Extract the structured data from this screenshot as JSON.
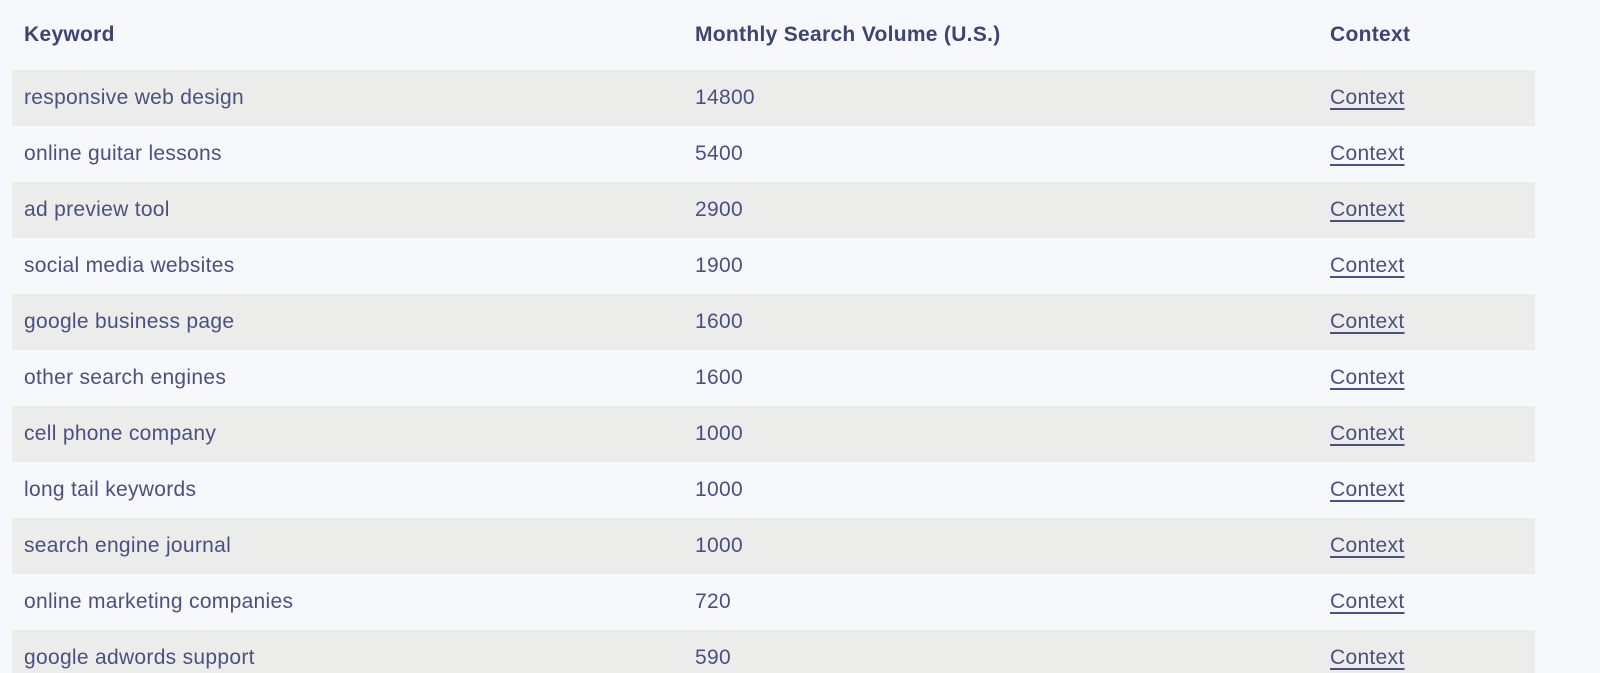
{
  "colors": {
    "page_bg": "#f7f8fb",
    "stripe_bg": "#ececeb",
    "header_text": "#3d4472",
    "body_text": "#4a5080"
  },
  "table": {
    "columns": {
      "keyword": "Keyword",
      "volume": "Monthly Search Volume (U.S.)",
      "context": "Context"
    },
    "rows": [
      {
        "keyword": "responsive web design",
        "volume": "14800",
        "context_label": "Context"
      },
      {
        "keyword": "online guitar lessons",
        "volume": "5400",
        "context_label": "Context"
      },
      {
        "keyword": "ad preview tool",
        "volume": "2900",
        "context_label": "Context"
      },
      {
        "keyword": "social media websites",
        "volume": "1900",
        "context_label": "Context"
      },
      {
        "keyword": "google business page",
        "volume": "1600",
        "context_label": "Context"
      },
      {
        "keyword": "other search engines",
        "volume": "1600",
        "context_label": "Context"
      },
      {
        "keyword": "cell phone company",
        "volume": "1000",
        "context_label": "Context"
      },
      {
        "keyword": "long tail keywords",
        "volume": "1000",
        "context_label": "Context"
      },
      {
        "keyword": "search engine journal",
        "volume": "1000",
        "context_label": "Context"
      },
      {
        "keyword": "online marketing companies",
        "volume": "720",
        "context_label": "Context"
      },
      {
        "keyword": "google adwords support",
        "volume": "590",
        "context_label": "Context"
      }
    ]
  }
}
